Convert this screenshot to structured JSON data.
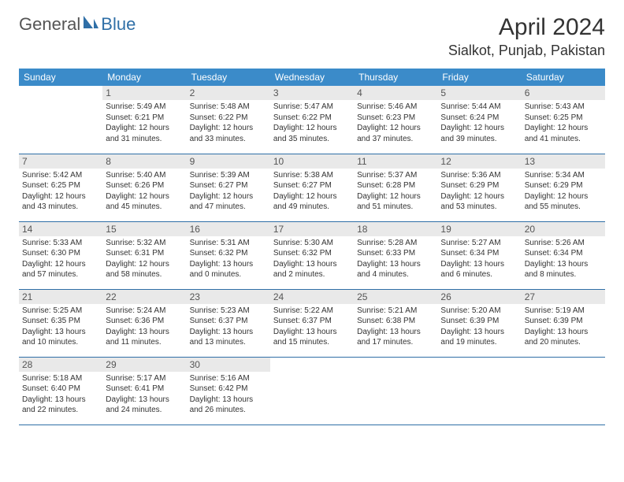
{
  "brand": {
    "part1": "General",
    "part2": "Blue"
  },
  "title": "April 2024",
  "location": "Sialkot, Punjab, Pakistan",
  "colors": {
    "header_bg": "#3b8bc9",
    "border": "#2f6fa7",
    "daynum_bg": "#e9e9e9",
    "text": "#333333"
  },
  "weekdays": [
    "Sunday",
    "Monday",
    "Tuesday",
    "Wednesday",
    "Thursday",
    "Friday",
    "Saturday"
  ],
  "weeks": [
    [
      null,
      {
        "n": "1",
        "sr": "Sunrise: 5:49 AM",
        "ss": "Sunset: 6:21 PM",
        "d1": "Daylight: 12 hours",
        "d2": "and 31 minutes."
      },
      {
        "n": "2",
        "sr": "Sunrise: 5:48 AM",
        "ss": "Sunset: 6:22 PM",
        "d1": "Daylight: 12 hours",
        "d2": "and 33 minutes."
      },
      {
        "n": "3",
        "sr": "Sunrise: 5:47 AM",
        "ss": "Sunset: 6:22 PM",
        "d1": "Daylight: 12 hours",
        "d2": "and 35 minutes."
      },
      {
        "n": "4",
        "sr": "Sunrise: 5:46 AM",
        "ss": "Sunset: 6:23 PM",
        "d1": "Daylight: 12 hours",
        "d2": "and 37 minutes."
      },
      {
        "n": "5",
        "sr": "Sunrise: 5:44 AM",
        "ss": "Sunset: 6:24 PM",
        "d1": "Daylight: 12 hours",
        "d2": "and 39 minutes."
      },
      {
        "n": "6",
        "sr": "Sunrise: 5:43 AM",
        "ss": "Sunset: 6:25 PM",
        "d1": "Daylight: 12 hours",
        "d2": "and 41 minutes."
      }
    ],
    [
      {
        "n": "7",
        "sr": "Sunrise: 5:42 AM",
        "ss": "Sunset: 6:25 PM",
        "d1": "Daylight: 12 hours",
        "d2": "and 43 minutes."
      },
      {
        "n": "8",
        "sr": "Sunrise: 5:40 AM",
        "ss": "Sunset: 6:26 PM",
        "d1": "Daylight: 12 hours",
        "d2": "and 45 minutes."
      },
      {
        "n": "9",
        "sr": "Sunrise: 5:39 AM",
        "ss": "Sunset: 6:27 PM",
        "d1": "Daylight: 12 hours",
        "d2": "and 47 minutes."
      },
      {
        "n": "10",
        "sr": "Sunrise: 5:38 AM",
        "ss": "Sunset: 6:27 PM",
        "d1": "Daylight: 12 hours",
        "d2": "and 49 minutes."
      },
      {
        "n": "11",
        "sr": "Sunrise: 5:37 AM",
        "ss": "Sunset: 6:28 PM",
        "d1": "Daylight: 12 hours",
        "d2": "and 51 minutes."
      },
      {
        "n": "12",
        "sr": "Sunrise: 5:36 AM",
        "ss": "Sunset: 6:29 PM",
        "d1": "Daylight: 12 hours",
        "d2": "and 53 minutes."
      },
      {
        "n": "13",
        "sr": "Sunrise: 5:34 AM",
        "ss": "Sunset: 6:29 PM",
        "d1": "Daylight: 12 hours",
        "d2": "and 55 minutes."
      }
    ],
    [
      {
        "n": "14",
        "sr": "Sunrise: 5:33 AM",
        "ss": "Sunset: 6:30 PM",
        "d1": "Daylight: 12 hours",
        "d2": "and 57 minutes."
      },
      {
        "n": "15",
        "sr": "Sunrise: 5:32 AM",
        "ss": "Sunset: 6:31 PM",
        "d1": "Daylight: 12 hours",
        "d2": "and 58 minutes."
      },
      {
        "n": "16",
        "sr": "Sunrise: 5:31 AM",
        "ss": "Sunset: 6:32 PM",
        "d1": "Daylight: 13 hours",
        "d2": "and 0 minutes."
      },
      {
        "n": "17",
        "sr": "Sunrise: 5:30 AM",
        "ss": "Sunset: 6:32 PM",
        "d1": "Daylight: 13 hours",
        "d2": "and 2 minutes."
      },
      {
        "n": "18",
        "sr": "Sunrise: 5:28 AM",
        "ss": "Sunset: 6:33 PM",
        "d1": "Daylight: 13 hours",
        "d2": "and 4 minutes."
      },
      {
        "n": "19",
        "sr": "Sunrise: 5:27 AM",
        "ss": "Sunset: 6:34 PM",
        "d1": "Daylight: 13 hours",
        "d2": "and 6 minutes."
      },
      {
        "n": "20",
        "sr": "Sunrise: 5:26 AM",
        "ss": "Sunset: 6:34 PM",
        "d1": "Daylight: 13 hours",
        "d2": "and 8 minutes."
      }
    ],
    [
      {
        "n": "21",
        "sr": "Sunrise: 5:25 AM",
        "ss": "Sunset: 6:35 PM",
        "d1": "Daylight: 13 hours",
        "d2": "and 10 minutes."
      },
      {
        "n": "22",
        "sr": "Sunrise: 5:24 AM",
        "ss": "Sunset: 6:36 PM",
        "d1": "Daylight: 13 hours",
        "d2": "and 11 minutes."
      },
      {
        "n": "23",
        "sr": "Sunrise: 5:23 AM",
        "ss": "Sunset: 6:37 PM",
        "d1": "Daylight: 13 hours",
        "d2": "and 13 minutes."
      },
      {
        "n": "24",
        "sr": "Sunrise: 5:22 AM",
        "ss": "Sunset: 6:37 PM",
        "d1": "Daylight: 13 hours",
        "d2": "and 15 minutes."
      },
      {
        "n": "25",
        "sr": "Sunrise: 5:21 AM",
        "ss": "Sunset: 6:38 PM",
        "d1": "Daylight: 13 hours",
        "d2": "and 17 minutes."
      },
      {
        "n": "26",
        "sr": "Sunrise: 5:20 AM",
        "ss": "Sunset: 6:39 PM",
        "d1": "Daylight: 13 hours",
        "d2": "and 19 minutes."
      },
      {
        "n": "27",
        "sr": "Sunrise: 5:19 AM",
        "ss": "Sunset: 6:39 PM",
        "d1": "Daylight: 13 hours",
        "d2": "and 20 minutes."
      }
    ],
    [
      {
        "n": "28",
        "sr": "Sunrise: 5:18 AM",
        "ss": "Sunset: 6:40 PM",
        "d1": "Daylight: 13 hours",
        "d2": "and 22 minutes."
      },
      {
        "n": "29",
        "sr": "Sunrise: 5:17 AM",
        "ss": "Sunset: 6:41 PM",
        "d1": "Daylight: 13 hours",
        "d2": "and 24 minutes."
      },
      {
        "n": "30",
        "sr": "Sunrise: 5:16 AM",
        "ss": "Sunset: 6:42 PM",
        "d1": "Daylight: 13 hours",
        "d2": "and 26 minutes."
      },
      null,
      null,
      null,
      null
    ]
  ]
}
